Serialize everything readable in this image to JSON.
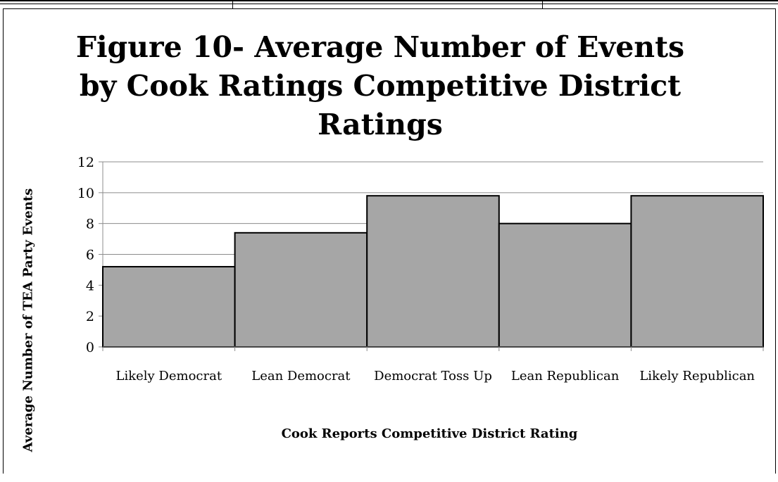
{
  "chart_data": {
    "type": "bar",
    "title": "Figure 10- Average Number of Events by Cook Ratings Competitive District Ratings",
    "xlabel": "Cook Reports Competitive District Rating",
    "ylabel": "Average Number of TEA Party Events",
    "categories": [
      "Likely Democrat",
      "Lean Democrat",
      "Democrat Toss Up",
      "Lean Republican",
      "Likely Republican"
    ],
    "values": [
      5.2,
      7.4,
      9.8,
      8.0,
      9.8
    ],
    "ylim": [
      0,
      12
    ],
    "yticks": [
      "0",
      "2",
      "4",
      "6",
      "8",
      "10",
      "12"
    ],
    "grid": true,
    "bar_color": "#a6a6a6"
  }
}
